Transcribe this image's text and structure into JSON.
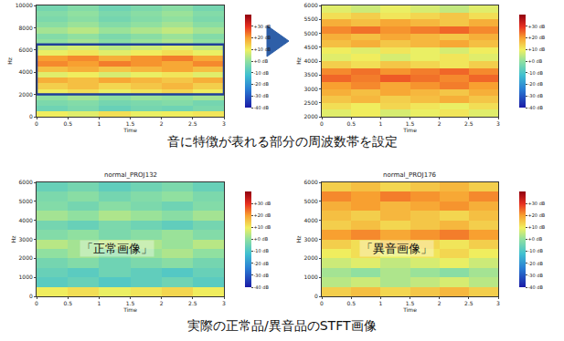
{
  "captions": [
    "音に特徴が表れる部分の周波数帯を設定",
    "実際の正常品/異音品のSTFT画像"
  ],
  "chart_data": [
    {
      "type": "heatmap",
      "xlabel": "Time",
      "ylabel": "Hz",
      "xlim": [
        0,
        3
      ],
      "xticks": [
        0,
        0.5,
        1,
        1.5,
        2,
        2.5,
        3
      ],
      "ylim": [
        0,
        10000
      ],
      "yticks": [
        0,
        2000,
        4000,
        6000,
        8000,
        10000
      ],
      "highlight": [
        2000,
        6500
      ],
      "x": [
        0.25,
        0.75,
        1.25,
        1.75,
        2.25,
        2.75
      ],
      "y": [
        250,
        750,
        1250,
        1750,
        2250,
        2750,
        3250,
        3750,
        4250,
        4750,
        5250,
        5750,
        6250,
        6750,
        7250,
        7750,
        8250,
        8750,
        9250,
        9750
      ],
      "values": [
        [
          10,
          8,
          12,
          9,
          10,
          11
        ],
        [
          -5,
          -3,
          -6,
          -4,
          -5,
          -3
        ],
        [
          -3,
          -2,
          -4,
          -3,
          -2,
          -4
        ],
        [
          0,
          2,
          -1,
          1,
          0,
          2
        ],
        [
          10,
          12,
          9,
          11,
          13,
          10
        ],
        [
          14,
          16,
          13,
          15,
          17,
          14
        ],
        [
          18,
          16,
          19,
          17,
          15,
          18
        ],
        [
          8,
          10,
          7,
          9,
          11,
          8
        ],
        [
          16,
          18,
          15,
          17,
          19,
          16
        ],
        [
          22,
          20,
          23,
          21,
          19,
          22
        ],
        [
          20,
          22,
          18,
          21,
          23,
          19
        ],
        [
          9,
          11,
          8,
          10,
          12,
          9
        ],
        [
          5,
          7,
          4,
          6,
          8,
          5
        ],
        [
          0,
          2,
          -1,
          1,
          3,
          0
        ],
        [
          -2,
          0,
          -3,
          -1,
          1,
          -2
        ],
        [
          2,
          4,
          1,
          3,
          5,
          2
        ],
        [
          -1,
          1,
          -2,
          0,
          2,
          -1
        ],
        [
          -3,
          -1,
          -4,
          -2,
          0,
          -3
        ],
        [
          -2,
          0,
          -3,
          -1,
          1,
          -2
        ],
        [
          -4,
          -2,
          -5,
          -3,
          -1,
          -4
        ]
      ],
      "zlim": [
        -40,
        40
      ],
      "zticks": [
        {
          "value": 30,
          "label": "+30 dB"
        },
        {
          "value": 20,
          "label": "+20 dB"
        },
        {
          "value": 10,
          "label": "+10 dB"
        },
        {
          "value": 0,
          "label": "+0 dB"
        },
        {
          "value": -10,
          "label": "-10 dB"
        },
        {
          "value": -20,
          "label": "-20 dB"
        },
        {
          "value": -30,
          "label": "-30 dB"
        },
        {
          "value": -40,
          "label": "-40 dB"
        }
      ]
    },
    {
      "type": "heatmap",
      "xlabel": "Time",
      "ylabel": "Hz",
      "xlim": [
        0,
        3
      ],
      "xticks": [
        0,
        0.5,
        1,
        1.5,
        2,
        2.5,
        3
      ],
      "ylim": [
        2000,
        6000
      ],
      "yticks": [
        2000,
        2500,
        3000,
        3500,
        4000,
        4500,
        5000,
        5500,
        6000
      ],
      "x": [
        0.25,
        0.75,
        1.25,
        1.75,
        2.25,
        2.75
      ],
      "y": [
        2125,
        2375,
        2625,
        2875,
        3125,
        3375,
        3625,
        3875,
        4125,
        4375,
        4625,
        4875,
        5125,
        5375,
        5625,
        5875
      ],
      "values": [
        [
          8,
          10,
          7,
          9,
          11,
          8
        ],
        [
          12,
          10,
          13,
          11,
          9,
          12
        ],
        [
          15,
          17,
          14,
          16,
          18,
          15
        ],
        [
          18,
          16,
          19,
          17,
          15,
          18
        ],
        [
          20,
          22,
          19,
          21,
          23,
          20
        ],
        [
          25,
          23,
          26,
          24,
          22,
          25
        ],
        [
          22,
          24,
          21,
          23,
          25,
          22
        ],
        [
          14,
          12,
          15,
          13,
          11,
          14
        ],
        [
          8,
          10,
          7,
          9,
          11,
          8
        ],
        [
          10,
          8,
          11,
          9,
          7,
          10
        ],
        [
          16,
          18,
          15,
          17,
          19,
          16
        ],
        [
          18,
          16,
          19,
          17,
          15,
          18
        ],
        [
          22,
          24,
          21,
          23,
          25,
          22
        ],
        [
          18,
          16,
          19,
          17,
          15,
          18
        ],
        [
          12,
          14,
          11,
          13,
          15,
          12
        ],
        [
          8,
          6,
          9,
          7,
          5,
          8
        ]
      ],
      "zlim": [
        -40,
        40
      ],
      "zticks": [
        {
          "value": 30,
          "label": "+30 dB"
        },
        {
          "value": 20,
          "label": "+20 dB"
        },
        {
          "value": 10,
          "label": "+10 dB"
        },
        {
          "value": 0,
          "label": "+0 dB"
        },
        {
          "value": -10,
          "label": "-10 dB"
        },
        {
          "value": -20,
          "label": "-20 dB"
        },
        {
          "value": -30,
          "label": "-30 dB"
        },
        {
          "value": -40,
          "label": "-40 dB"
        }
      ]
    },
    {
      "type": "heatmap",
      "title": "normal_PROJ132",
      "annotation": "「正常画像」",
      "xlabel": "Time",
      "ylabel": "Hz",
      "xlim": [
        0,
        3
      ],
      "xticks": [
        0,
        0.5,
        1,
        1.5,
        2,
        2.5,
        3
      ],
      "ylim": [
        0,
        6000
      ],
      "yticks": [
        0,
        1000,
        2000,
        3000,
        4000,
        5000,
        6000
      ],
      "x": [
        0.25,
        0.75,
        1.25,
        1.75,
        2.25,
        2.75
      ],
      "y": [
        250,
        750,
        1250,
        1750,
        2250,
        2750,
        3250,
        3750,
        4250,
        4750,
        5250,
        5750
      ],
      "values": [
        [
          10,
          12,
          9,
          11,
          13,
          10
        ],
        [
          -8,
          -6,
          -9,
          -7,
          -5,
          -8
        ],
        [
          -6,
          -8,
          -5,
          -7,
          -9,
          -6
        ],
        [
          -4,
          -2,
          -5,
          -3,
          -1,
          -4
        ],
        [
          0,
          2,
          -1,
          1,
          3,
          0
        ],
        [
          4,
          2,
          5,
          3,
          1,
          4
        ],
        [
          -2,
          0,
          -3,
          -1,
          1,
          -2
        ],
        [
          -4,
          -6,
          -3,
          -5,
          -7,
          -4
        ],
        [
          2,
          0,
          3,
          1,
          -1,
          2
        ],
        [
          -2,
          -4,
          -1,
          -3,
          -5,
          -2
        ],
        [
          -3,
          -1,
          -4,
          -2,
          0,
          -3
        ],
        [
          -6,
          -4,
          -7,
          -5,
          -3,
          -6
        ]
      ],
      "zlim": [
        -40,
        40
      ],
      "zticks": [
        {
          "value": 30,
          "label": "+30 dB"
        },
        {
          "value": 20,
          "label": "+20 dB"
        },
        {
          "value": 10,
          "label": "+10 dB"
        },
        {
          "value": 0,
          "label": "+0 dB"
        },
        {
          "value": -10,
          "label": "-10 dB"
        },
        {
          "value": -20,
          "label": "-20 dB"
        },
        {
          "value": -30,
          "label": "-30 dB"
        },
        {
          "value": -40,
          "label": "-40 dB"
        }
      ]
    },
    {
      "type": "heatmap",
      "title": "normal_PROJ176",
      "annotation": "「異音画像」",
      "xlabel": "Time",
      "ylabel": "Hz",
      "xlim": [
        0,
        3
      ],
      "xticks": [
        0,
        0.5,
        1,
        1.5,
        2,
        2.5,
        3
      ],
      "ylim": [
        0,
        6000
      ],
      "yticks": [
        0,
        1000,
        2000,
        3000,
        4000,
        5000,
        6000
      ],
      "x": [
        0.25,
        0.75,
        1.25,
        1.75,
        2.25,
        2.75
      ],
      "y": [
        250,
        750,
        1250,
        1750,
        2250,
        2750,
        3250,
        3750,
        4250,
        4750,
        5250,
        5750
      ],
      "values": [
        [
          14,
          16,
          13,
          15,
          17,
          14
        ],
        [
          4,
          6,
          3,
          5,
          7,
          4
        ],
        [
          2,
          0,
          3,
          1,
          -1,
          2
        ],
        [
          6,
          8,
          5,
          7,
          9,
          6
        ],
        [
          10,
          12,
          9,
          11,
          13,
          10
        ],
        [
          14,
          12,
          15,
          13,
          11,
          14
        ],
        [
          20,
          22,
          19,
          21,
          23,
          20
        ],
        [
          14,
          16,
          13,
          15,
          17,
          14
        ],
        [
          16,
          14,
          17,
          15,
          13,
          16
        ],
        [
          18,
          20,
          17,
          19,
          21,
          18
        ],
        [
          22,
          20,
          23,
          21,
          19,
          22
        ],
        [
          14,
          16,
          13,
          15,
          17,
          14
        ]
      ],
      "zlim": [
        -40,
        40
      ],
      "zticks": [
        {
          "value": 30,
          "label": "+30 dB"
        },
        {
          "value": 20,
          "label": "+20 dB"
        },
        {
          "value": 10,
          "label": "+10 dB"
        },
        {
          "value": 0,
          "label": "+0 dB"
        },
        {
          "value": -10,
          "label": "-10 dB"
        },
        {
          "value": -20,
          "label": "-20 dB"
        },
        {
          "value": -30,
          "label": "-30 dB"
        },
        {
          "value": -40,
          "label": "-40 dB"
        }
      ]
    }
  ]
}
